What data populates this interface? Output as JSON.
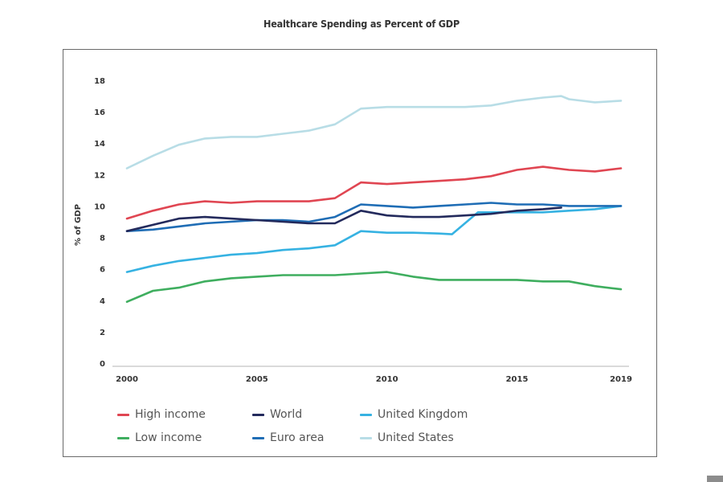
{
  "chart_data": {
    "type": "line",
    "title": "Healthcare Spending as Percent of GDP",
    "xlabel": "",
    "ylabel": "% of GDP",
    "xlim": [
      2000,
      2019
    ],
    "ylim": [
      0,
      18
    ],
    "x_ticks": [
      2000,
      2005,
      2010,
      2015,
      2019
    ],
    "x_tick_labels": [
      "2000",
      "2005",
      "2010",
      "2015",
      "2019"
    ],
    "y_ticks": [
      0,
      2,
      4,
      6,
      8,
      10,
      12,
      14,
      16,
      18
    ],
    "y_tick_labels": [
      "0",
      "2",
      "4",
      "6",
      "8",
      "10",
      "12",
      "14",
      "16",
      "18"
    ],
    "grid": false,
    "legend_position": "bottom",
    "series": [
      {
        "name": "High income",
        "color": "#e04652",
        "x": [
          2000,
          2001,
          2002,
          2003,
          2004,
          2005,
          2006,
          2007,
          2008,
          2009,
          2010,
          2011,
          2012,
          2013,
          2014,
          2015,
          2016,
          2017,
          2018,
          2019
        ],
        "values": [
          9.2,
          9.7,
          10.1,
          10.3,
          10.2,
          10.3,
          10.3,
          10.3,
          10.5,
          11.5,
          11.4,
          11.5,
          11.6,
          11.7,
          11.9,
          12.3,
          12.5,
          12.3,
          12.2,
          12.4
        ]
      },
      {
        "name": "World",
        "color": "#232a5c",
        "x": [
          2000,
          2001,
          2002,
          2003,
          2004,
          2005,
          2006,
          2007,
          2008,
          2009,
          2010,
          2011,
          2012,
          2013,
          2014,
          2015,
          2016,
          2016.7
        ],
        "values": [
          8.4,
          8.8,
          9.2,
          9.3,
          9.2,
          9.1,
          9.0,
          8.9,
          8.9,
          9.7,
          9.4,
          9.3,
          9.3,
          9.4,
          9.5,
          9.7,
          9.8,
          9.9
        ]
      },
      {
        "name": "United Kingdom",
        "color": "#36b2e2",
        "x": [
          2000,
          2001,
          2002,
          2003,
          2004,
          2005,
          2006,
          2007,
          2008,
          2009,
          2010,
          2011,
          2012,
          2012.5,
          2013.5,
          2014,
          2015,
          2016,
          2017,
          2018,
          2019
        ],
        "values": [
          5.8,
          6.2,
          6.5,
          6.7,
          6.9,
          7.0,
          7.2,
          7.3,
          7.5,
          8.4,
          8.3,
          8.3,
          8.25,
          8.2,
          9.6,
          9.6,
          9.6,
          9.6,
          9.7,
          9.8,
          10.0
        ]
      },
      {
        "name": "Low income",
        "color": "#3fae5f",
        "x": [
          2000,
          2001,
          2002,
          2003,
          2004,
          2005,
          2006,
          2007,
          2008,
          2009,
          2010,
          2011,
          2012,
          2013,
          2014,
          2015,
          2016,
          2017,
          2018,
          2019
        ],
        "values": [
          3.9,
          4.6,
          4.8,
          5.2,
          5.4,
          5.5,
          5.6,
          5.6,
          5.6,
          5.7,
          5.8,
          5.5,
          5.3,
          5.3,
          5.3,
          5.3,
          5.2,
          5.2,
          4.9,
          4.7
        ]
      },
      {
        "name": "Euro area",
        "color": "#1f6db5",
        "x": [
          2000,
          2001,
          2002,
          2003,
          2004,
          2005,
          2006,
          2007,
          2008,
          2009,
          2010,
          2011,
          2012,
          2013,
          2014,
          2015,
          2016,
          2017,
          2018,
          2019
        ],
        "values": [
          8.4,
          8.5,
          8.7,
          8.9,
          9.0,
          9.1,
          9.1,
          9.0,
          9.3,
          10.1,
          10.0,
          9.9,
          10.0,
          10.1,
          10.2,
          10.1,
          10.1,
          10.0,
          10.0,
          10.0
        ]
      },
      {
        "name": "United States",
        "color": "#b8dde6",
        "x": [
          2000,
          2001,
          2002,
          2003,
          2004,
          2005,
          2006,
          2007,
          2008,
          2009,
          2010,
          2011,
          2012,
          2013,
          2014,
          2015,
          2016,
          2016.7,
          2017,
          2018,
          2019
        ],
        "values": [
          12.4,
          13.2,
          13.9,
          14.3,
          14.4,
          14.4,
          14.6,
          14.8,
          15.2,
          16.2,
          16.3,
          16.3,
          16.3,
          16.3,
          16.4,
          16.7,
          16.9,
          17.0,
          16.8,
          16.6,
          16.7
        ]
      }
    ]
  },
  "legend": {
    "items": [
      {
        "label": "High income",
        "color": "#e04652"
      },
      {
        "label": "World",
        "color": "#232a5c"
      },
      {
        "label": "United Kingdom",
        "color": "#36b2e2"
      },
      {
        "label": "Low income",
        "color": "#3fae5f"
      },
      {
        "label": "Euro area",
        "color": "#1f6db5"
      },
      {
        "label": "United States",
        "color": "#b8dde6"
      }
    ]
  }
}
